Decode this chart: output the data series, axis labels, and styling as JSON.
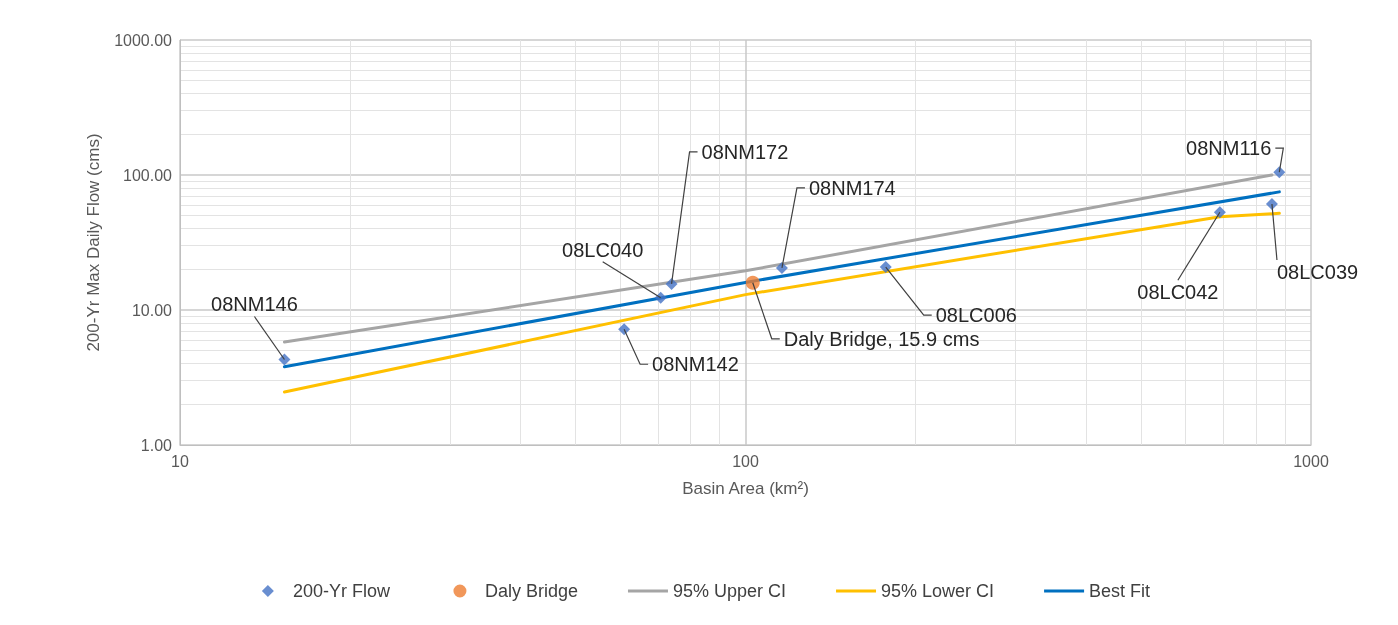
{
  "chart_data": {
    "type": "scatter",
    "xlabel": "Basin Area (km²)",
    "ylabel": "200-Yr Max Daily Flow (cms)",
    "log": "xy",
    "grid": true,
    "legend": "bottom",
    "xlim": [
      10,
      1000
    ],
    "xticks": [
      10,
      100,
      1000
    ],
    "ylim": [
      1,
      1000
    ],
    "yticks": [
      {
        "value": 1,
        "label": "1.00"
      },
      {
        "value": 10,
        "label": "10.00"
      },
      {
        "value": 100,
        "label": "100.00"
      },
      {
        "value": 1000,
        "label": "1000.00"
      }
    ],
    "series": [
      {
        "name": "200-Yr Flow",
        "marker": "diamond",
        "color": "#4472c4",
        "x": [
          15.3,
          61,
          70.8,
          74,
          116,
          177,
          690,
          853,
          879
        ],
        "values": [
          4.3,
          7.2,
          12.3,
          15.6,
          20.5,
          20.8,
          53,
          61,
          105
        ]
      },
      {
        "name": "Daly Bridge",
        "marker": "circle",
        "color": "#ed7d31",
        "x": [
          103
        ],
        "values": [
          15.9
        ]
      },
      {
        "name": "95% Upper CI",
        "type": "line",
        "marker": "none",
        "color": "#a5a5a5",
        "x": [
          15.3,
          100,
          853
        ],
        "values": [
          5.8,
          19.5,
          100
        ]
      },
      {
        "name": "95% Lower CI",
        "type": "line",
        "marker": "none",
        "color": "#ffc000",
        "x": [
          15.3,
          100,
          690,
          879
        ],
        "values": [
          2.47,
          13,
          49,
          52
        ]
      },
      {
        "name": "Best Fit",
        "type": "line",
        "marker": "none",
        "color": "#0070c0",
        "x": [
          15.3,
          100,
          879
        ],
        "values": [
          3.8,
          16,
          75
        ]
      }
    ],
    "annotations": [
      {
        "text": "08NM146",
        "x": 15.3,
        "y": 4.3
      },
      {
        "text": "08NM142",
        "x": 61,
        "y": 7.2
      },
      {
        "text": "08LC040",
        "x": 70.8,
        "y": 12.3
      },
      {
        "text": "08NM172",
        "x": 74,
        "y": 15.6
      },
      {
        "text": "Daly Bridge, 15.9 cms",
        "x": 103,
        "y": 15.9
      },
      {
        "text": "08NM174",
        "x": 116,
        "y": 20.5
      },
      {
        "text": "08LC006",
        "x": 177,
        "y": 20.8
      },
      {
        "text": "08LC042",
        "x": 690,
        "y": 53
      },
      {
        "text": "08LC039",
        "x": 853,
        "y": 61
      },
      {
        "text": "08NM116",
        "x": 879,
        "y": 105
      }
    ]
  }
}
